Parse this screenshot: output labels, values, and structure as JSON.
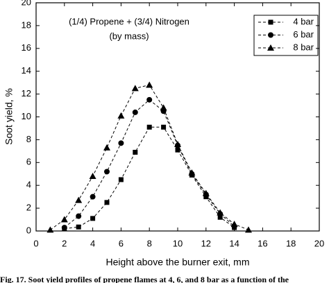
{
  "chart_data": {
    "type": "line",
    "annotations": [
      "(1/4) Propene + (3/4) Nitrogen",
      "(by mass)"
    ],
    "x_label": "Height above the burner exit, mm",
    "y_label": "Soot yield, %",
    "caption": "Fig. 17. Soot yield profiles of propene flames at 4, 6, and 8 bar as a function of the",
    "xlim": [
      0,
      20
    ],
    "xticks": [
      0,
      2,
      4,
      6,
      8,
      10,
      12,
      14,
      16,
      18,
      20
    ],
    "ylim": [
      0,
      20
    ],
    "yticks": [
      0,
      2,
      4,
      6,
      8,
      10,
      12,
      14,
      16,
      18,
      20
    ],
    "legend": "upper right",
    "series": [
      {
        "name": "4 bar",
        "color": "#000000",
        "marker": "square",
        "x": [
          2,
          3,
          4,
          5,
          6,
          7,
          8,
          9,
          10,
          11,
          12,
          13,
          14
        ],
        "values": [
          0.2,
          0.35,
          1.1,
          2.5,
          4.5,
          6.9,
          9.1,
          9.1,
          7.1,
          4.9,
          3.0,
          1.2,
          0.3
        ]
      },
      {
        "name": "6 bar",
        "color": "#000000",
        "marker": "circle",
        "x": [
          2,
          3,
          4,
          5,
          6,
          7,
          8,
          9,
          10,
          11,
          12,
          13,
          14
        ],
        "values": [
          0.3,
          1.3,
          3.0,
          5.2,
          7.7,
          10.4,
          11.5,
          10.5,
          7.5,
          5.0,
          3.2,
          1.5,
          0.4
        ]
      },
      {
        "name": "8 bar",
        "color": "#000000",
        "marker": "triangle",
        "x": [
          1,
          2,
          3,
          4,
          5,
          6,
          7,
          8,
          9,
          10,
          11,
          12,
          13,
          14,
          15
        ],
        "values": [
          0.1,
          1.0,
          2.7,
          4.8,
          7.3,
          10.1,
          12.5,
          12.8,
          10.8,
          7.6,
          5.1,
          3.3,
          1.6,
          0.6,
          0.1
        ]
      }
    ]
  }
}
